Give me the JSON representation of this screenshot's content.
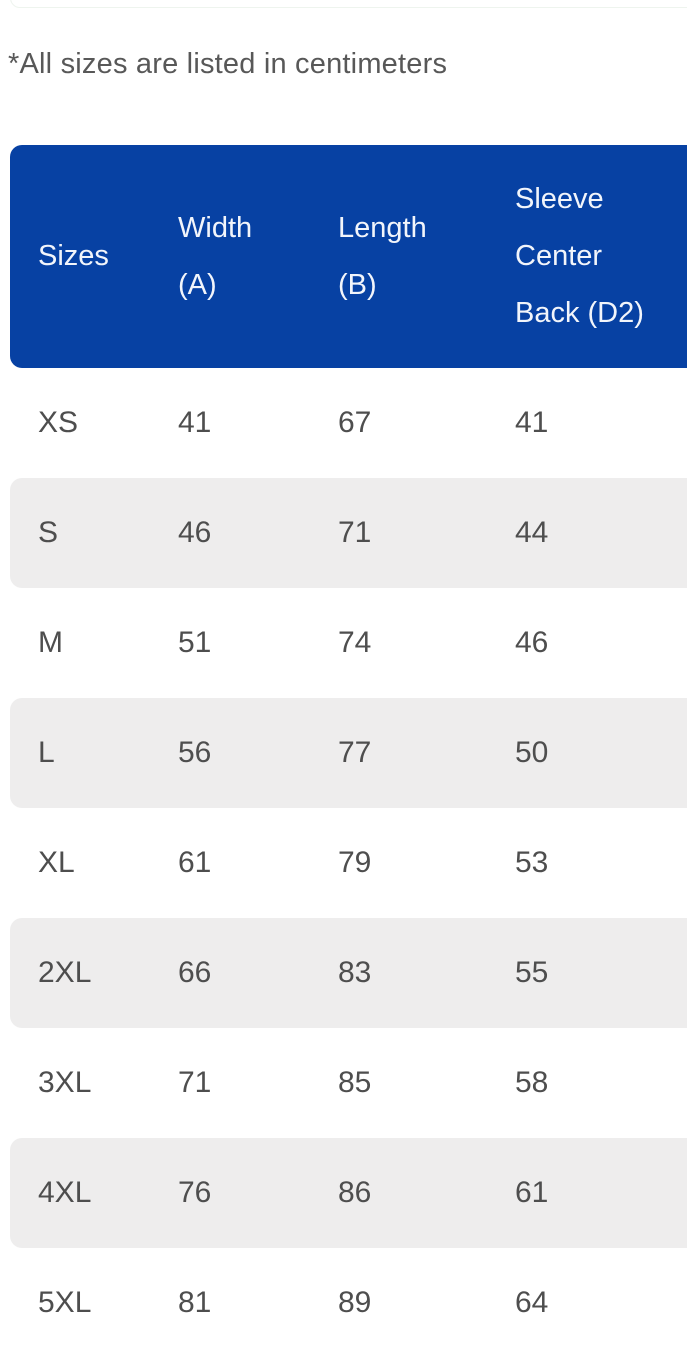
{
  "note": "*All sizes are listed in centimeters",
  "size_table": {
    "header": {
      "sizes": "Sizes",
      "width": [
        "Width",
        "(A)"
      ],
      "length": [
        "Length",
        "(B)"
      ],
      "sleeve": [
        "Sleeve",
        "Center",
        "Back (D2)"
      ]
    },
    "rows": [
      {
        "size": "XS",
        "width": "41",
        "length": "67",
        "sleeve": "41"
      },
      {
        "size": "S",
        "width": "46",
        "length": "71",
        "sleeve": "44"
      },
      {
        "size": "M",
        "width": "51",
        "length": "74",
        "sleeve": "46"
      },
      {
        "size": "L",
        "width": "56",
        "length": "77",
        "sleeve": "50"
      },
      {
        "size": "XL",
        "width": "61",
        "length": "79",
        "sleeve": "53"
      },
      {
        "size": "2XL",
        "width": "66",
        "length": "83",
        "sleeve": "55"
      },
      {
        "size": "3XL",
        "width": "71",
        "length": "85",
        "sleeve": "58"
      },
      {
        "size": "4XL",
        "width": "76",
        "length": "86",
        "sleeve": "61"
      },
      {
        "size": "5XL",
        "width": "81",
        "length": "89",
        "sleeve": "64"
      }
    ],
    "colors": {
      "header_bg": "#0741a3",
      "header_text": "#f2f5fb",
      "row_alt_bg": "#eeeded",
      "cell_text": "#4e4e4e",
      "note_text": "#585858"
    }
  }
}
